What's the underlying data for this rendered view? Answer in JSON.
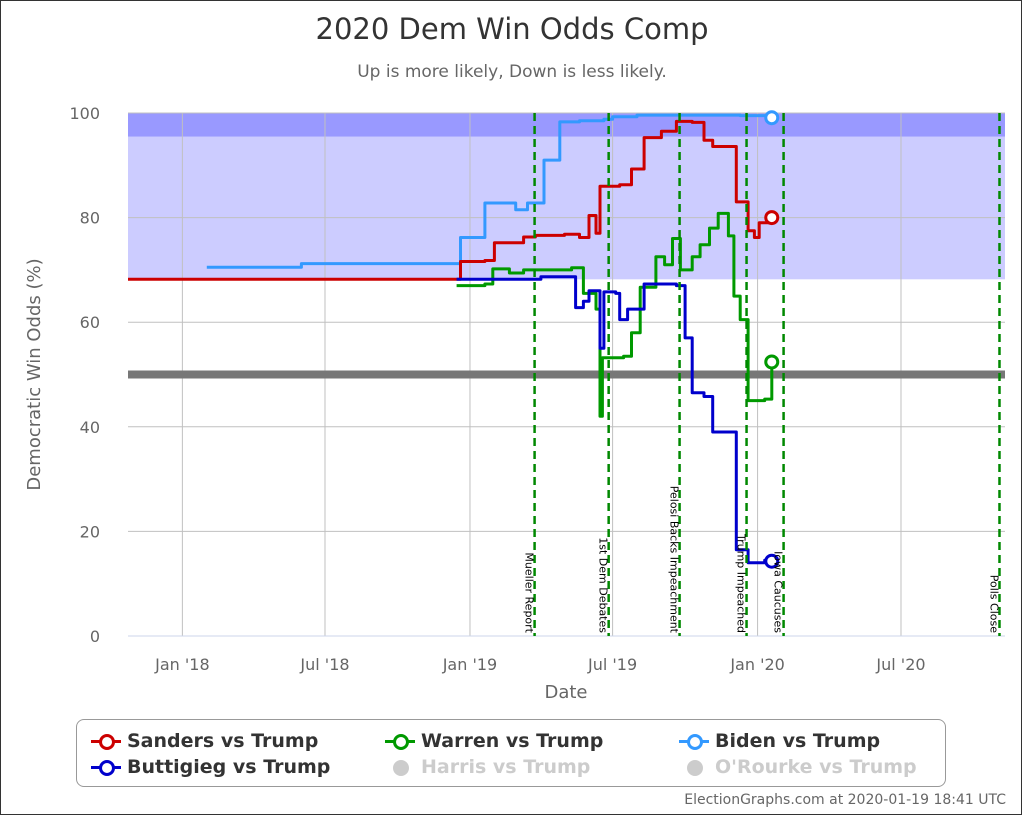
{
  "title": "2020 Dem Win Odds Comp",
  "subtitle": "Up is more likely, Down is less likely.",
  "credit": "ElectionGraphs.com at 2020-01-19 18:41 UTC",
  "legend": [
    {
      "name": "Sanders vs Trump",
      "color": "#cc0000",
      "visible": true
    },
    {
      "name": "Warren vs Trump",
      "color": "#009900",
      "visible": true
    },
    {
      "name": "Biden vs Trump",
      "color": "#3399ff",
      "visible": true
    },
    {
      "name": "Buttigieg vs Trump",
      "color": "#0000cc",
      "visible": true
    },
    {
      "name": "Harris vs Trump",
      "color": "#cccccc",
      "visible": false
    },
    {
      "name": "O'Rourke vs Trump",
      "color": "#cccccc",
      "visible": false
    }
  ],
  "chart_data": {
    "type": "line",
    "xlabel": "Date",
    "ylabel": "Democratic Win Odds (%)",
    "xlim": [
      "2017-10-24",
      "2020-11-10"
    ],
    "ylim": [
      0,
      100
    ],
    "x_ticks": [
      {
        "date": "2018-01-01",
        "label": "Jan '18"
      },
      {
        "date": "2018-07-01",
        "label": "Jul '18"
      },
      {
        "date": "2019-01-01",
        "label": "Jan '19"
      },
      {
        "date": "2019-07-01",
        "label": "Jul '19"
      },
      {
        "date": "2020-01-01",
        "label": "Jan '20"
      },
      {
        "date": "2020-07-01",
        "label": "Jul '20"
      }
    ],
    "y_ticks": [
      0,
      20,
      40,
      60,
      80,
      100
    ],
    "grid": true,
    "bands": [
      {
        "from": 68.2,
        "to": 100,
        "color": "#ccccff"
      },
      {
        "from": 95.5,
        "to": 100,
        "color": "#9999ff"
      }
    ],
    "reference_line": {
      "y": 50,
      "color": "#777777"
    },
    "events": [
      {
        "date": "2019-03-24",
        "label": "Mueller Report"
      },
      {
        "date": "2019-06-26",
        "label": "1st Dem Debates"
      },
      {
        "date": "2019-09-24",
        "label": "Pelosi Backs Impeachment"
      },
      {
        "date": "2019-12-18",
        "label": "Trump Impeached"
      },
      {
        "date": "2020-02-03",
        "label": "Iowa Caucuses"
      },
      {
        "date": "2020-11-03",
        "label": "Polls Close"
      }
    ],
    "series": [
      {
        "name": "Biden vs Trump",
        "color": "#3399ff",
        "points": [
          [
            "2018-02-01",
            70.5
          ],
          [
            "2018-06-01",
            71.2
          ],
          [
            "2018-12-15",
            71.2
          ],
          [
            "2018-12-20",
            76.2
          ],
          [
            "2019-01-15",
            76.2
          ],
          [
            "2019-01-20",
            82.8
          ],
          [
            "2019-02-20",
            82.8
          ],
          [
            "2019-02-28",
            81.5
          ],
          [
            "2019-03-15",
            82.8
          ],
          [
            "2019-04-05",
            91
          ],
          [
            "2019-04-25",
            98.3
          ],
          [
            "2019-05-20",
            98.5
          ],
          [
            "2019-06-20",
            98.8
          ],
          [
            "2019-07-01",
            99.3
          ],
          [
            "2019-08-01",
            99.6
          ],
          [
            "2019-11-15",
            99.6
          ],
          [
            "2019-12-10",
            99.5
          ],
          [
            "2020-01-19",
            99.1
          ]
        ]
      },
      {
        "name": "Sanders vs Trump",
        "color": "#cc0000",
        "points": [
          [
            "2017-10-24",
            68.2
          ],
          [
            "2018-12-15",
            68.2
          ],
          [
            "2018-12-20",
            71.6
          ],
          [
            "2019-01-20",
            71.8
          ],
          [
            "2019-02-01",
            75.2
          ],
          [
            "2019-03-10",
            76.3
          ],
          [
            "2019-03-25",
            76.6
          ],
          [
            "2019-05-01",
            76.8
          ],
          [
            "2019-05-20",
            76.2
          ],
          [
            "2019-06-01",
            80.4
          ],
          [
            "2019-06-10",
            77
          ],
          [
            "2019-06-15",
            86
          ],
          [
            "2019-07-10",
            86.3
          ],
          [
            "2019-07-25",
            89.3
          ],
          [
            "2019-08-10",
            95.3
          ],
          [
            "2019-09-01",
            96.5
          ],
          [
            "2019-09-20",
            98.4
          ],
          [
            "2019-10-10",
            98.2
          ],
          [
            "2019-10-25",
            94.8
          ],
          [
            "2019-11-05",
            93.6
          ],
          [
            "2019-11-25",
            93.6
          ],
          [
            "2019-12-05",
            83
          ],
          [
            "2019-12-20",
            77.5
          ],
          [
            "2019-12-28",
            76.2
          ],
          [
            "2020-01-03",
            79
          ],
          [
            "2020-01-19",
            80
          ]
        ]
      },
      {
        "name": "Warren vs Trump",
        "color": "#009900",
        "points": [
          [
            "2018-12-15",
            67
          ],
          [
            "2019-01-20",
            67.3
          ],
          [
            "2019-01-30",
            70.2
          ],
          [
            "2019-02-20",
            69.4
          ],
          [
            "2019-03-10",
            70
          ],
          [
            "2019-05-10",
            70.4
          ],
          [
            "2019-05-25",
            65.5
          ],
          [
            "2019-06-10",
            62.5
          ],
          [
            "2019-06-15",
            42
          ],
          [
            "2019-06-18",
            53.2
          ],
          [
            "2019-07-15",
            53.5
          ],
          [
            "2019-07-25",
            58
          ],
          [
            "2019-08-05",
            66.7
          ],
          [
            "2019-08-25",
            72.5
          ],
          [
            "2019-09-05",
            71
          ],
          [
            "2019-09-15",
            76
          ],
          [
            "2019-09-25",
            70
          ],
          [
            "2019-10-10",
            72.5
          ],
          [
            "2019-10-20",
            74.8
          ],
          [
            "2019-11-01",
            78
          ],
          [
            "2019-11-12",
            80.8
          ],
          [
            "2019-11-25",
            76.5
          ],
          [
            "2019-12-02",
            65
          ],
          [
            "2019-12-10",
            60.5
          ],
          [
            "2019-12-20",
            45
          ],
          [
            "2020-01-10",
            45.3
          ],
          [
            "2020-01-19",
            52.4
          ]
        ]
      },
      {
        "name": "Buttigieg vs Trump",
        "color": "#0000cc",
        "points": [
          [
            "2018-12-15",
            68.2
          ],
          [
            "2019-03-20",
            68.2
          ],
          [
            "2019-04-01",
            68.7
          ],
          [
            "2019-05-10",
            68.7
          ],
          [
            "2019-05-15",
            62.8
          ],
          [
            "2019-05-25",
            64
          ],
          [
            "2019-06-01",
            66
          ],
          [
            "2019-06-15",
            55
          ],
          [
            "2019-06-20",
            65.8
          ],
          [
            "2019-07-05",
            65.5
          ],
          [
            "2019-07-10",
            60.5
          ],
          [
            "2019-07-20",
            62.5
          ],
          [
            "2019-08-10",
            67.3
          ],
          [
            "2019-09-20",
            67
          ],
          [
            "2019-10-01",
            57
          ],
          [
            "2019-10-10",
            46.5
          ],
          [
            "2019-10-25",
            45.8
          ],
          [
            "2019-11-05",
            39
          ],
          [
            "2019-11-25",
            39
          ],
          [
            "2019-12-05",
            16.5
          ],
          [
            "2019-12-20",
            14
          ],
          [
            "2020-01-10",
            14.5
          ],
          [
            "2020-01-19",
            14.3
          ]
        ]
      }
    ]
  }
}
